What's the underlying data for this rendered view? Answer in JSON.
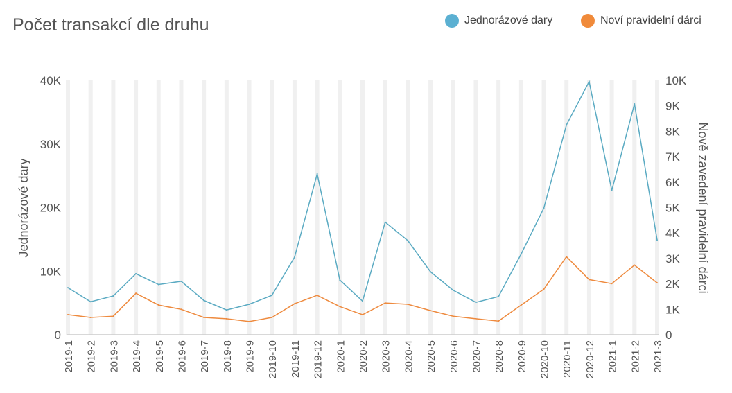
{
  "chart_data": {
    "type": "line",
    "title": "Počet transakcí dle druhu",
    "categories": [
      "2019-1",
      "2019-2",
      "2019-3",
      "2019-4",
      "2019-5",
      "2019-6",
      "2019-7",
      "2019-8",
      "2019-9",
      "2019-10",
      "2019-11",
      "2019-12",
      "2020-1",
      "2020-2",
      "2020-3",
      "2020-4",
      "2020-5",
      "2020-6",
      "2020-7",
      "2020-8",
      "2020-9",
      "2020-10",
      "2020-11",
      "2020-12",
      "2021-1",
      "2021-2",
      "2021-3"
    ],
    "ylabel_left": "Jednorázové dary",
    "ylabel_right": "Nově zavedení pravidelní dárci",
    "ylim_left": [
      0,
      40000
    ],
    "ylim_right": [
      0,
      10000
    ],
    "yticks_left": [
      "0",
      "10K",
      "20K",
      "30K",
      "40K"
    ],
    "yticks_right": [
      "0",
      "1K",
      "2K",
      "3K",
      "4K",
      "5K",
      "6K",
      "7K",
      "8K",
      "9K",
      "10K"
    ],
    "grid": "vertical",
    "legend_position": "top-right",
    "series": [
      {
        "name": "Jednorázové dary",
        "axis": "left",
        "color": "#5aaac2",
        "legend_color": "#5bb0d2",
        "values": [
          7400,
          5200,
          6100,
          9600,
          7900,
          8400,
          5400,
          3900,
          4800,
          6200,
          12200,
          25300,
          8600,
          5300,
          17700,
          14800,
          9900,
          7000,
          5100,
          6000,
          12700,
          19900,
          33000,
          39800,
          22700,
          36300,
          14900
        ]
      },
      {
        "name": "Noví pravidelní dárci",
        "axis": "right",
        "color": "#ee8a3e",
        "legend_color": "#f08a3a",
        "values": [
          790,
          680,
          730,
          1630,
          1170,
          1000,
          680,
          630,
          520,
          680,
          1220,
          1550,
          1110,
          790,
          1250,
          1200,
          950,
          730,
          630,
          540,
          1170,
          1790,
          3070,
          2170,
          2010,
          2740,
          2040
        ]
      }
    ]
  }
}
